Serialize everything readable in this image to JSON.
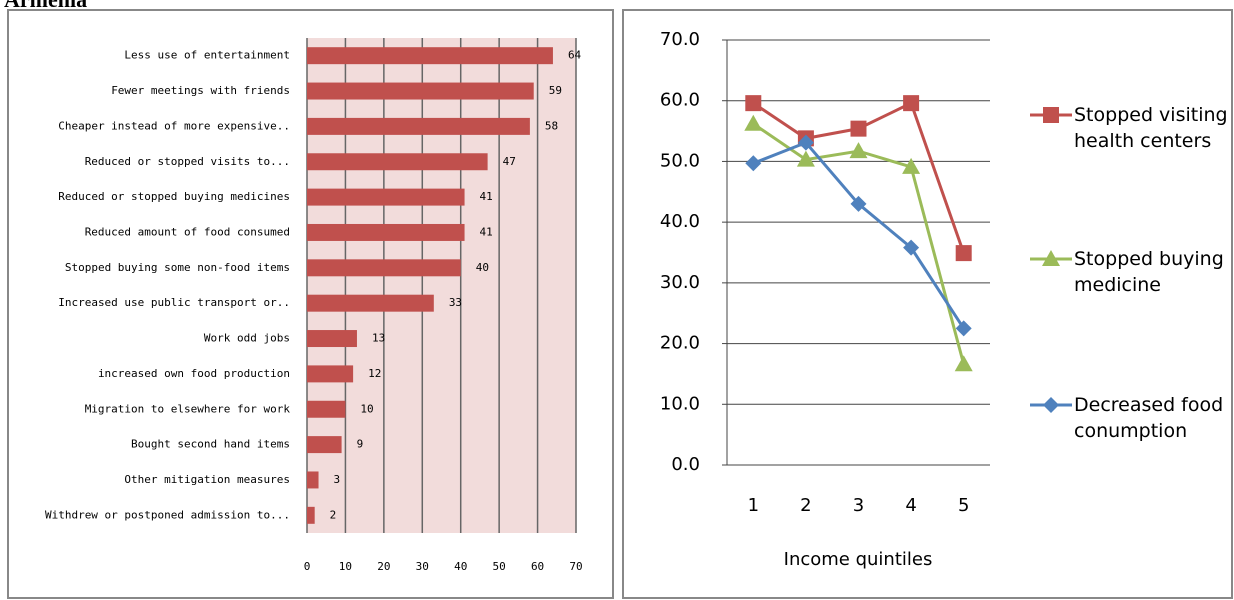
{
  "page_title": "Armenia",
  "chart_data": [
    {
      "type": "hbar",
      "categories": [
        "Less use of entertainment",
        "Fewer meetings with friends",
        "Cheaper instead of more expensive..",
        "Reduced or stopped visits to...",
        "Reduced or stopped buying medicines",
        "Reduced amount of food consumed",
        "Stopped buying some non-food items",
        "Increased use public transport or..",
        "Work odd jobs",
        "increased own food production",
        "Migration to elsewhere for work",
        "Bought second hand items",
        "Other mitigation measures",
        "Withdrew or postponed admission to..."
      ],
      "values": [
        64,
        59,
        58,
        47,
        41,
        41,
        40,
        33,
        13,
        12,
        10,
        9,
        3,
        2
      ],
      "color": "#c0504d",
      "xlim": [
        0,
        70
      ],
      "xticks": [
        0,
        10,
        20,
        30,
        40,
        50,
        60,
        70
      ],
      "grid": true
    },
    {
      "type": "line",
      "x_label": "Income quintiles",
      "categories": [
        "1",
        "2",
        "3",
        "4",
        "5"
      ],
      "series": [
        {
          "name": "Stopped visiting health centers",
          "color": "#c0504d",
          "marker": "square",
          "values": [
            59.6,
            53.8,
            55.4,
            59.6,
            34.9
          ]
        },
        {
          "name": "Stopped buying medicine",
          "color": "#9bbb59",
          "marker": "triangle",
          "values": [
            56.2,
            50.3,
            51.7,
            49.1,
            16.6
          ]
        },
        {
          "name": "Decreased food conumption",
          "color": "#4f81bd",
          "marker": "diamond",
          "values": [
            49.7,
            53.1,
            43.0,
            35.8,
            22.5
          ]
        }
      ],
      "ylim": [
        0,
        70
      ],
      "yticks": [
        {
          "value": 0,
          "label": "0.0"
        },
        {
          "value": 10,
          "label": "10.0"
        },
        {
          "value": 20,
          "label": "20.0"
        },
        {
          "value": 30,
          "label": "30.0"
        },
        {
          "value": 40,
          "label": "40.0"
        },
        {
          "value": 50,
          "label": "50.0"
        },
        {
          "value": 60,
          "label": "60.0"
        },
        {
          "value": 70,
          "label": "70.0"
        }
      ],
      "grid": true,
      "legend": "right"
    }
  ]
}
